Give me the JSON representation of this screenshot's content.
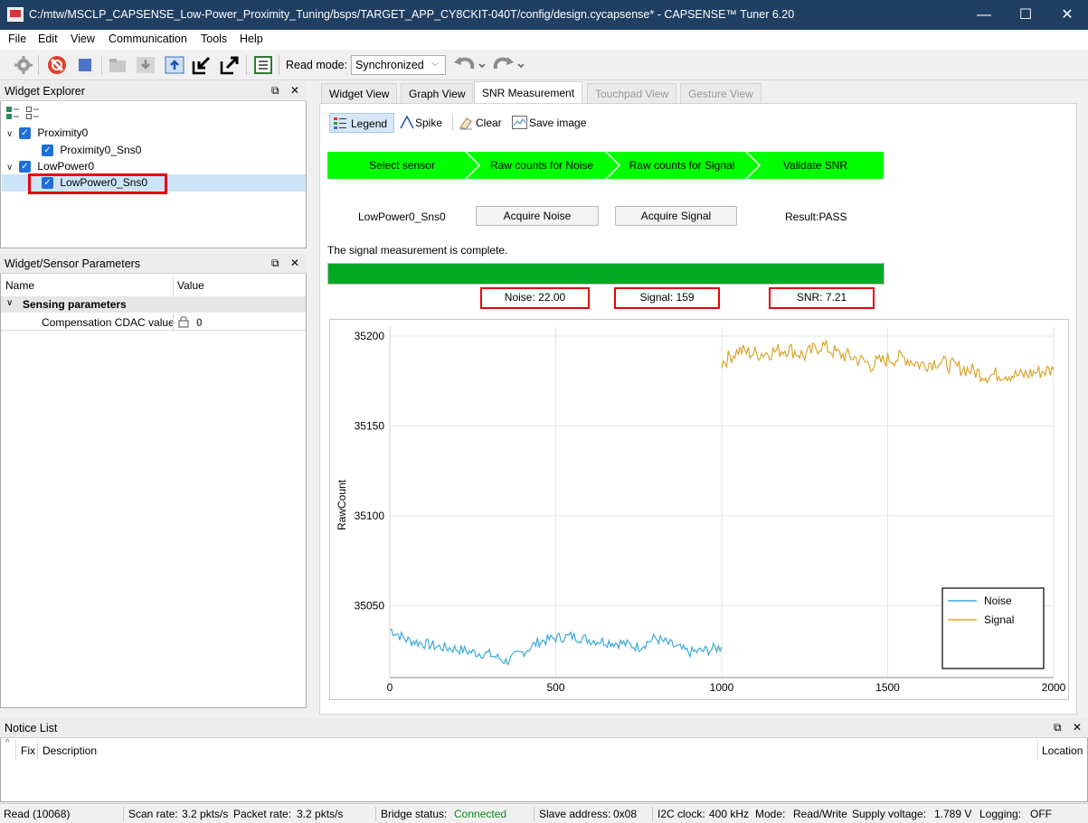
{
  "window": {
    "title": "C:/mtw/MSCLP_CAPSENSE_Low-Power_Proximity_Tuning/bsps/TARGET_APP_CY8CKIT-040T/config/design.cycapsense* - CAPSENSE™ Tuner 6.20",
    "minimize": "—",
    "maximize": "☐",
    "close": "✕"
  },
  "menu": [
    "File",
    "Edit",
    "View",
    "Communication",
    "Tools",
    "Help"
  ],
  "toolbar": {
    "read_mode_label": "Read mode:",
    "read_mode_value": "Synchronized",
    "icons": [
      "gear-icon",
      "disconnect-icon",
      "stop-icon",
      "open-file-icon",
      "download-icon",
      "upload-icon",
      "import-icon",
      "export-icon",
      "log-icon",
      "undo-icon",
      "redo-icon"
    ]
  },
  "widget_explorer": {
    "title": "Widget Explorer",
    "items": [
      {
        "label": "Proximity0",
        "level": 0
      },
      {
        "label": "Proximity0_Sns0",
        "level": 1
      },
      {
        "label": "LowPower0",
        "level": 0
      },
      {
        "label": "LowPower0_Sns0",
        "level": 1
      }
    ]
  },
  "params": {
    "title": "Widget/Sensor Parameters",
    "col_name": "Name",
    "col_value": "Value",
    "group": "Sensing parameters",
    "row_name": "Compensation CDAC value",
    "row_value": "0"
  },
  "tabs": [
    "Widget View",
    "Graph View",
    "SNR Measurement",
    "Touchpad View",
    "Gesture View"
  ],
  "snr": {
    "legend_btn": "Legend",
    "spike_btn": "Spike",
    "clear_btn": "Clear",
    "save_btn": "Save image",
    "steps": [
      "Select sensor",
      "Raw counts for Noise",
      "Raw counts for Signal",
      "Validate SNR"
    ],
    "sensor": "LowPower0_Sns0",
    "acquire_noise": "Acquire Noise",
    "acquire_signal": "Acquire Signal",
    "result": "Result:PASS",
    "status_msg": "The signal measurement is complete.",
    "progress": 1.0,
    "noise_label": "Noise:  22.00",
    "signal_label": "Signal:  159",
    "snr_label": "SNR:  7.21",
    "accent": "#00ff00",
    "progress_color": "#00aa22",
    "highlight": "#e8000b"
  },
  "chart_data": {
    "type": "line",
    "title": "",
    "xlabel": "",
    "ylabel": "RawCount",
    "xlim": [
      0,
      2000
    ],
    "ylim": [
      35010,
      35205
    ],
    "xticks": [
      0,
      500,
      1000,
      1500,
      2000
    ],
    "yticks": [
      35050,
      35100,
      35150,
      35200
    ],
    "grid": true,
    "legend_position": "bottom-right",
    "series": [
      {
        "name": "Noise",
        "color": "#3ba9d8",
        "x": [
          0,
          50,
          100,
          150,
          200,
          250,
          300,
          350,
          400,
          450,
          500,
          550,
          600,
          650,
          700,
          750,
          800,
          850,
          900,
          950,
          1000
        ],
        "values": [
          35037,
          35031,
          35029,
          35027,
          35026,
          35024,
          35023,
          35019,
          35024,
          35030,
          35032,
          35033,
          35031,
          35030,
          35029,
          35027,
          35032,
          35028,
          35024,
          35025,
          35027
        ]
      },
      {
        "name": "Signal",
        "color": "#d9a52b",
        "x": [
          1000,
          1050,
          1100,
          1150,
          1200,
          1250,
          1300,
          1350,
          1400,
          1450,
          1500,
          1550,
          1600,
          1650,
          1700,
          1750,
          1800,
          1850,
          1900,
          1950,
          2000
        ],
        "values": [
          35185,
          35192,
          35190,
          35191,
          35193,
          35189,
          35195,
          35190,
          35188,
          35184,
          35187,
          35188,
          35184,
          35186,
          35183,
          35181,
          35178,
          35179,
          35178,
          35180,
          35181
        ]
      }
    ]
  },
  "notice": {
    "title": "Notice List",
    "col_fix": "Fix",
    "col_desc": "Description",
    "col_loc": "Location"
  },
  "status": {
    "read": "Read (10068)",
    "scan_label": "Scan rate:",
    "scan_value": "3.2 pkts/s",
    "packet_label": "Packet rate:",
    "packet_value": "3.2 pkts/s",
    "bridge_label": "Bridge status:",
    "bridge_value": "Connected",
    "slave_label": "Slave address:",
    "slave_value": "0x08",
    "i2c_label": "I2C clock:",
    "i2c_value": "400 kHz",
    "mode_label": "Mode:",
    "mode_value": "Read/Write",
    "supply_label": "Supply voltage:",
    "supply_value": "1.789 V",
    "logging_label": "Logging:",
    "logging_value": "OFF",
    "connected_color": "#0a8a1a"
  }
}
